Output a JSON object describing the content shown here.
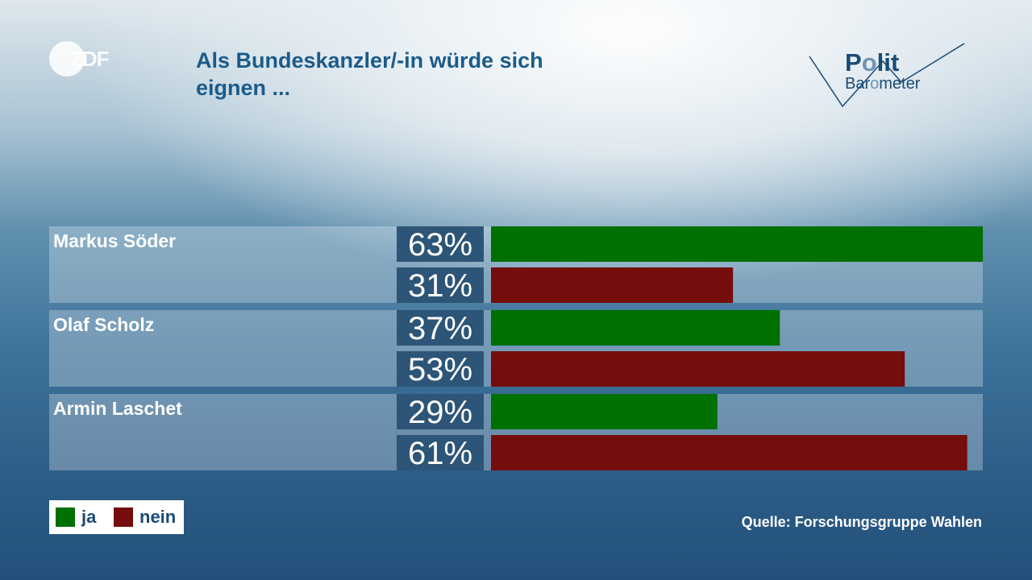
{
  "header": {
    "title_line1": "Als Bundeskanzler/-in würde sich",
    "title_line2": "eignen ...",
    "brand_logo": "ZDF",
    "polit_logo_line1": "Polit",
    "polit_logo_line2": "Barometer"
  },
  "chart_data": {
    "type": "bar",
    "orientation": "horizontal",
    "title": "Als Bundeskanzler/-in würde sich eignen ...",
    "categories": [
      "Markus Söder",
      "Olaf Scholz",
      "Armin Laschet"
    ],
    "series": [
      {
        "name": "ja",
        "values": [
          63,
          37,
          29
        ],
        "color": "#007000"
      },
      {
        "name": "nein",
        "values": [
          31,
          53,
          61
        ],
        "color": "#750d0d"
      }
    ],
    "unit": "%",
    "xlim": [
      0,
      63
    ],
    "grid": false,
    "legend": "bottom-left"
  },
  "legend": {
    "ja": "ja",
    "nein": "nein"
  },
  "footer": {
    "source": "Quelle: Forschungsgruppe Wahlen"
  },
  "colors": {
    "title": "#1b5b8a",
    "label_box": "#2c5577",
    "panel": "#ffffff"
  }
}
